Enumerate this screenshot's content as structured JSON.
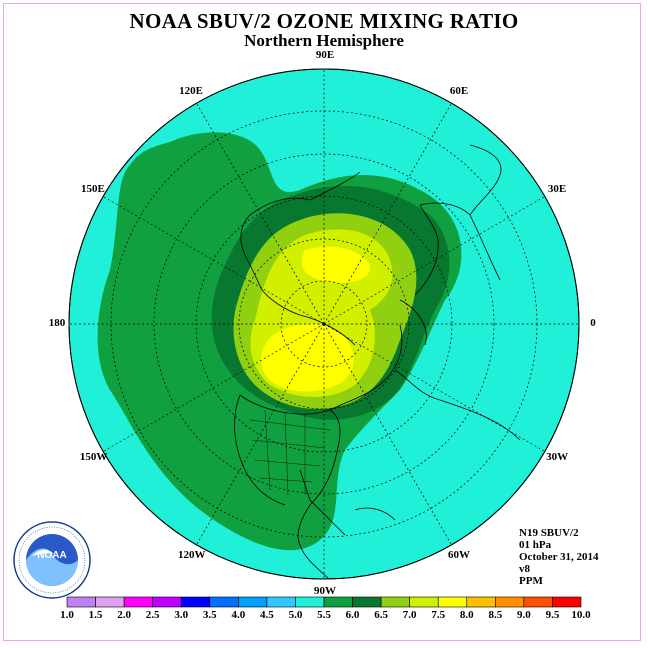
{
  "title": "NOAA SBUV/2 OZONE MIXING RATIO",
  "subtitle": "Northern Hemisphere",
  "longitudes": [
    {
      "label": "90E",
      "angle": 90
    },
    {
      "label": "60E",
      "angle": 60
    },
    {
      "label": "30E",
      "angle": 30
    },
    {
      "label": "0",
      "angle": 0
    },
    {
      "label": "30W",
      "angle": -30
    },
    {
      "label": "60W",
      "angle": -60
    },
    {
      "label": "90W",
      "angle": -90
    },
    {
      "label": "120W",
      "angle": -120
    },
    {
      "label": "150W",
      "angle": -150
    },
    {
      "label": "180",
      "angle": 180
    },
    {
      "label": "150E",
      "angle": 150
    },
    {
      "label": "120E",
      "angle": 120
    }
  ],
  "info": {
    "instrument": "N19 SBUV/2",
    "level": "01 hPa",
    "date": "October 31, 2014",
    "version": "v8",
    "units": "PPM"
  },
  "colorbar": {
    "labels": [
      "1.0",
      "1.5",
      "2.0",
      "2.5",
      "3.0",
      "3.5",
      "4.0",
      "4.5",
      "5.0",
      "5.5",
      "6.0",
      "6.5",
      "7.0",
      "7.5",
      "8.0",
      "8.5",
      "9.0",
      "9.5",
      "10.0"
    ],
    "colors": [
      "#c080f0",
      "#e0a0f0",
      "#ff00ff",
      "#c000ff",
      "#0000ff",
      "#0070ff",
      "#00a0ff",
      "#30c8ff",
      "#20f0d8",
      "#10a040",
      "#087830",
      "#90d010",
      "#d0f000",
      "#ffff00",
      "#ffc000",
      "#ff9000",
      "#ff5000",
      "#ff0000",
      "#a06040"
    ]
  },
  "map_colors": {
    "ocean": "#20f0d8",
    "band_5_5": "#10a040",
    "band_6_0": "#087830",
    "band_6_5": "#90d010",
    "band_7_0": "#d0f000",
    "band_7_5": "#ffff00"
  }
}
